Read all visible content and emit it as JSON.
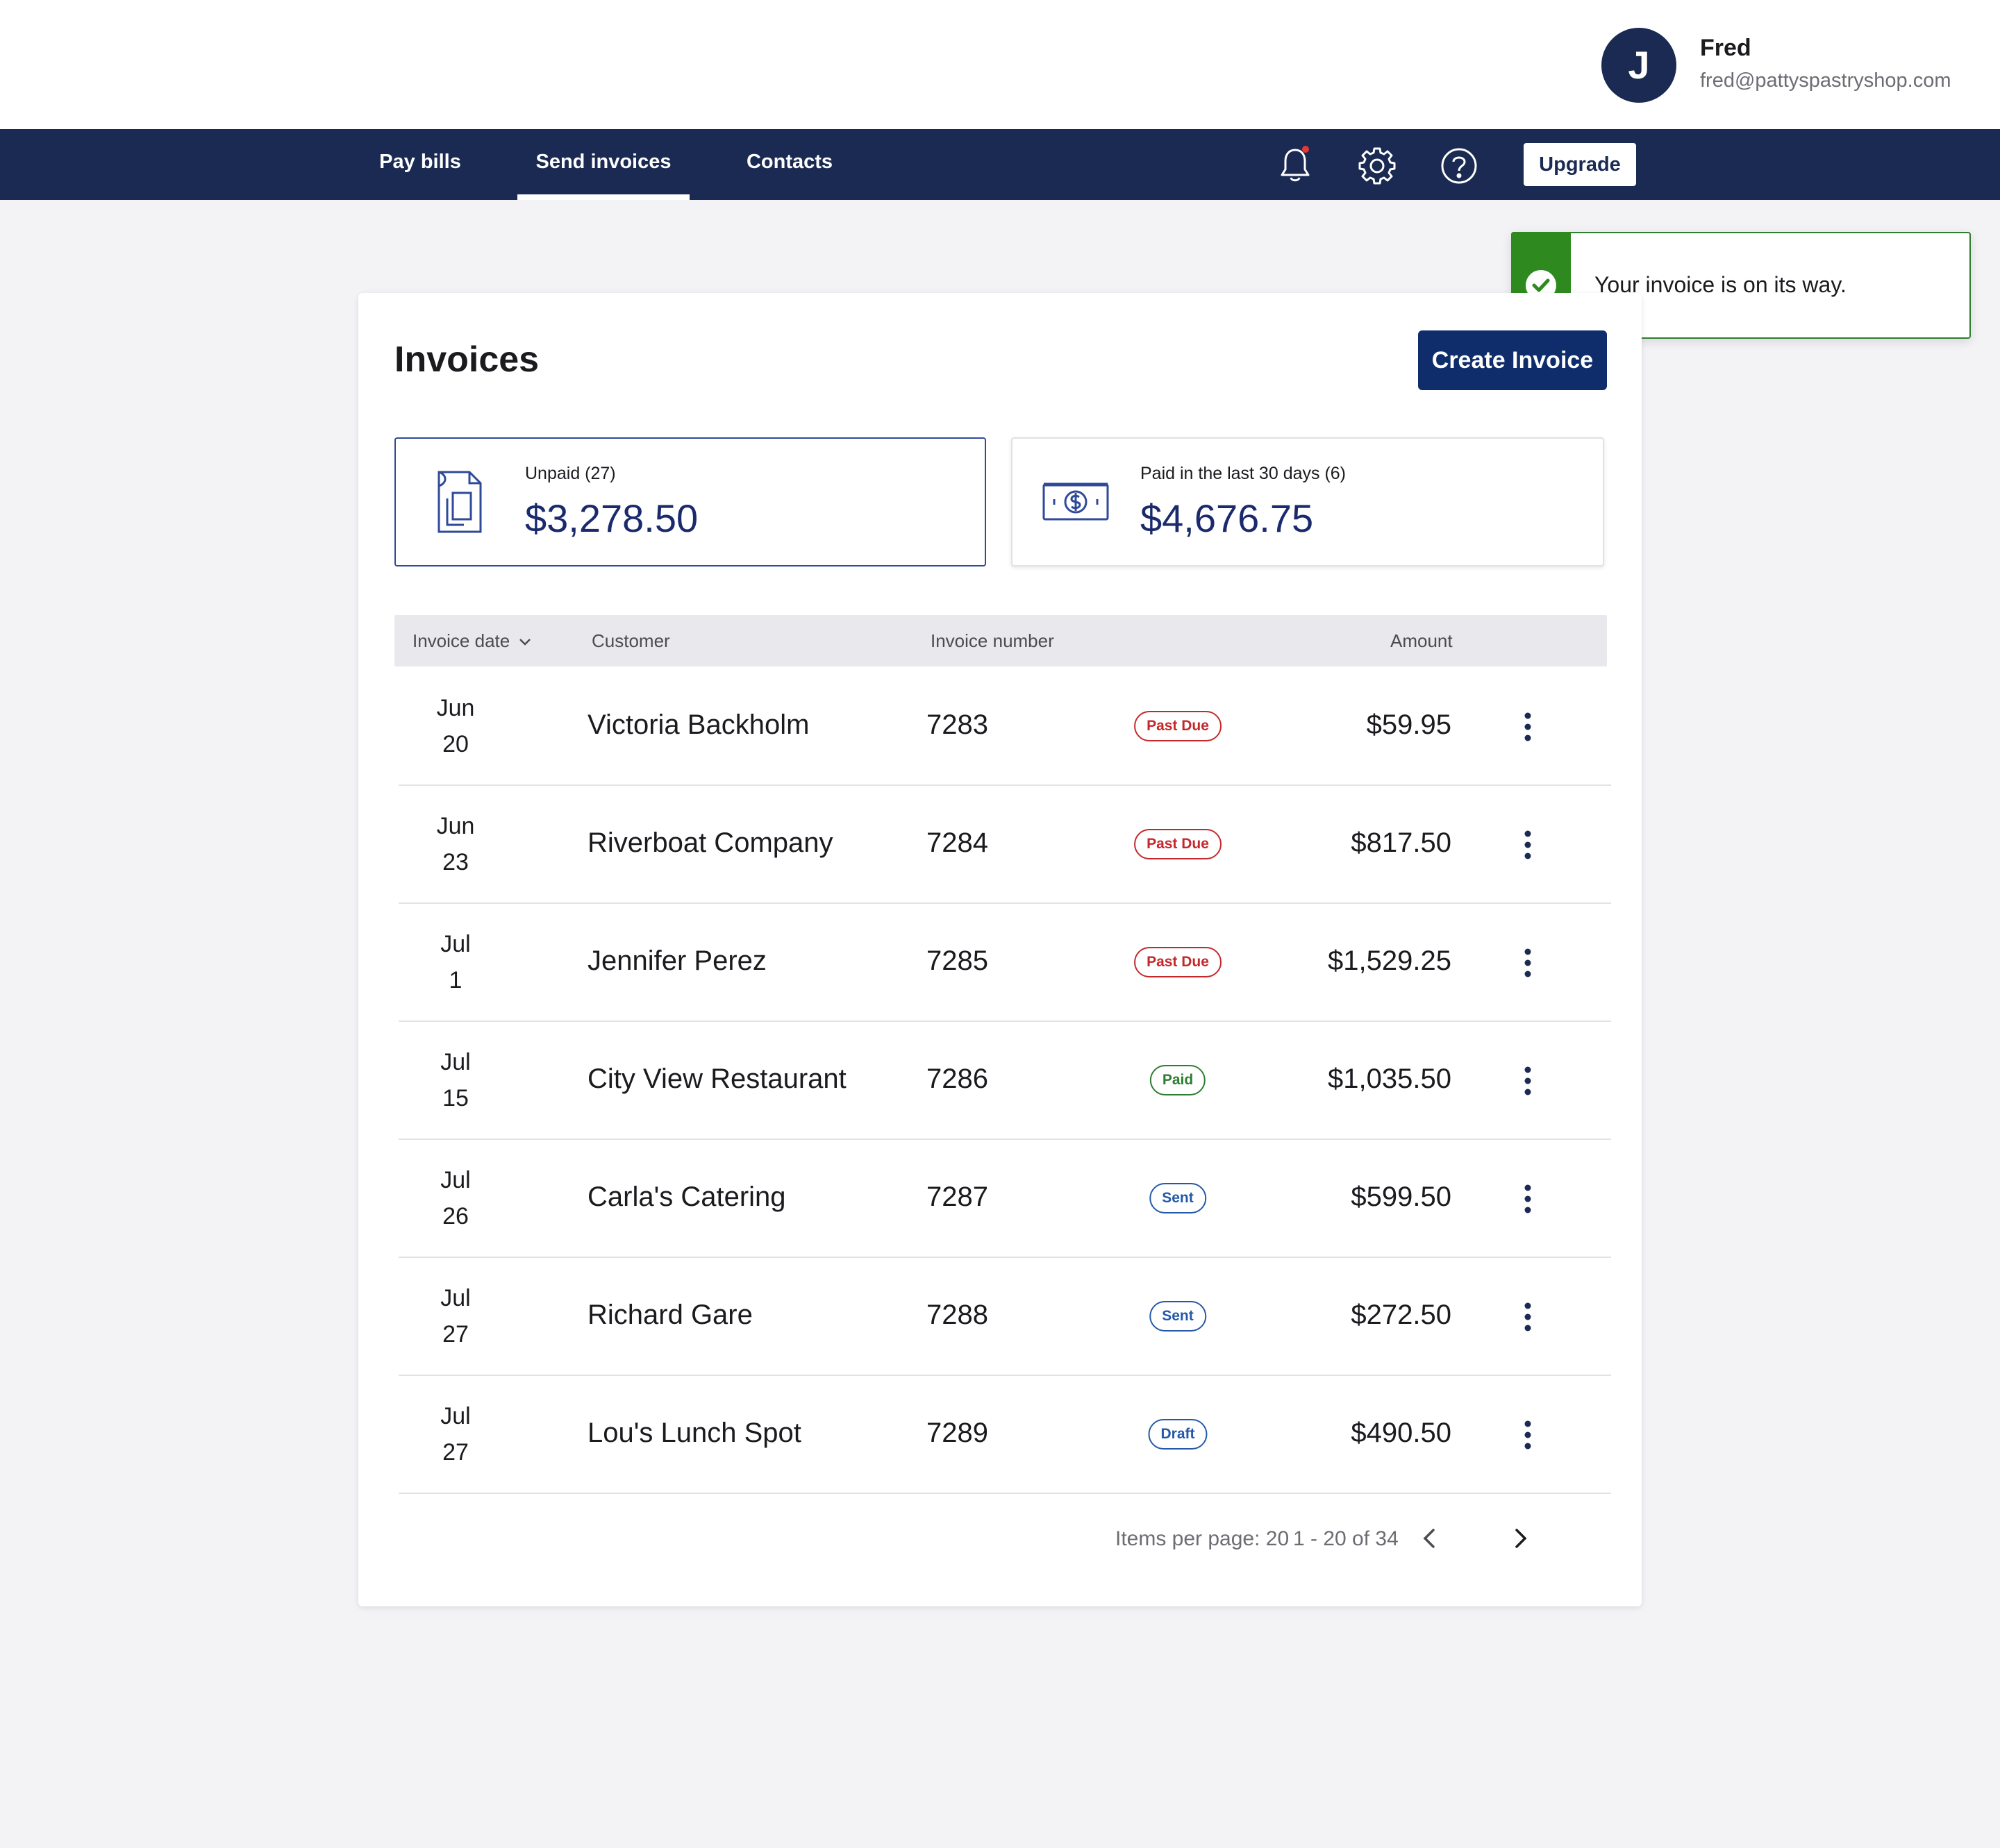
{
  "user": {
    "initial": "J",
    "name": "Fred",
    "email": "fred@pattyspastryshop.com"
  },
  "nav": {
    "tabs": [
      {
        "label": "Pay bills"
      },
      {
        "label": "Send invoices",
        "active": true
      },
      {
        "label": "Contacts"
      }
    ],
    "icons": [
      "bell-icon",
      "gear-icon",
      "help-icon"
    ],
    "upgrade_label": "Upgrade",
    "notification_dot_color": "#e53935"
  },
  "toast": {
    "message": "Your invoice is on its way.",
    "color": "#2e8a1f"
  },
  "page": {
    "title": "Invoices",
    "create_label": "Create Invoice"
  },
  "summary": {
    "unpaid": {
      "label": "Unpaid (27)",
      "amount": "$3,278.50"
    },
    "paid": {
      "label": "Paid in the last 30 days (6)",
      "amount": "$4,676.75"
    }
  },
  "table": {
    "headers": {
      "date": "Invoice date",
      "customer": "Customer",
      "number": "Invoice number",
      "amount": "Amount"
    },
    "rows": [
      {
        "month": "Jun",
        "day": "20",
        "customer": "Victoria Backholm",
        "number": "7283",
        "status": "Past Due",
        "amount": "$59.95"
      },
      {
        "month": "Jun",
        "day": "23",
        "customer": "Riverboat Company",
        "number": "7284",
        "status": "Past Due",
        "amount": "$817.50"
      },
      {
        "month": "Jul",
        "day": "1",
        "customer": "Jennifer Perez",
        "number": "7285",
        "status": "Past Due",
        "amount": "$1,529.25"
      },
      {
        "month": "Jul",
        "day": "15",
        "customer": "City View Restaurant",
        "number": "7286",
        "status": "Paid",
        "amount": "$1,035.50"
      },
      {
        "month": "Jul",
        "day": "26",
        "customer": "Carla's Catering",
        "number": "7287",
        "status": "Sent",
        "amount": "$599.50"
      },
      {
        "month": "Jul",
        "day": "27",
        "customer": "Richard Gare",
        "number": "7288",
        "status": "Sent",
        "amount": "$272.50"
      },
      {
        "month": "Jul",
        "day": "27",
        "customer": "Lou's Lunch Spot",
        "number": "7289",
        "status": "Draft",
        "amount": "$490.50"
      }
    ]
  },
  "pagination": {
    "items_per_page": "Items per page: 20",
    "range": "1 - 20 of 34"
  }
}
